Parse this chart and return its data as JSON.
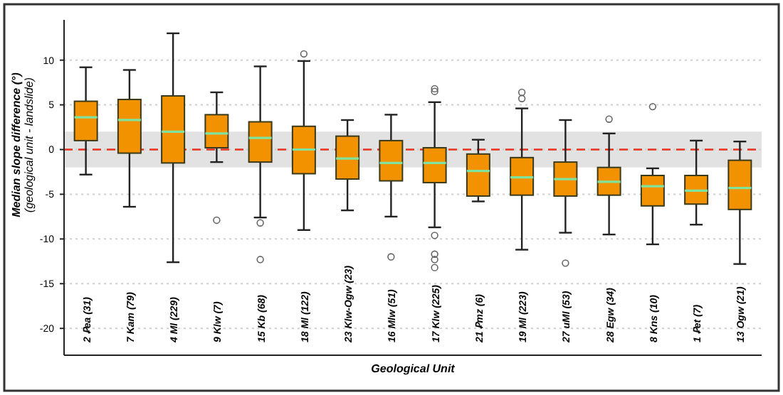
{
  "chart_data": {
    "type": "box",
    "xlabel": "Geological Unit",
    "ylabel": "Median slope difference (°)\n(geological unit - landslide)",
    "categories": [
      "2 Ꝑea (31)",
      "7 Kam (79)",
      "4 Ml (229)",
      "9 Klw (7)",
      "15 Kb (68)",
      "18 Ml (122)",
      "23 Klw-Ogw (23)",
      "16 Mlw (51)",
      "17 Klw (225)",
      "21 Ꝑmz (6)",
      "19 Ml (223)",
      "27 uMl (53)",
      "28 Egw (34)",
      "8 Kns (10)",
      "1 Ꝑet (7)",
      "13 Ogw (21)"
    ],
    "color": "#f39200",
    "boxes": [
      {
        "low": -2.8,
        "q1": 1.0,
        "median": 3.6,
        "q3": 5.4,
        "high": 9.2
      },
      {
        "low": -6.4,
        "q1": -0.4,
        "median": 3.3,
        "q3": 5.6,
        "high": 8.9
      },
      {
        "low": -12.6,
        "q1": -1.5,
        "median": 2.0,
        "q3": 6.0,
        "high": 13.0
      },
      {
        "low": -1.4,
        "q1": 0.2,
        "median": 1.8,
        "q3": 3.9,
        "high": 6.4,
        "outliers": [
          -7.9
        ]
      },
      {
        "low": -7.6,
        "q1": -1.4,
        "median": 1.3,
        "q3": 3.1,
        "high": 9.3,
        "outliers": [
          -8.2,
          -12.3
        ]
      },
      {
        "low": -9.0,
        "q1": -2.7,
        "median": 0.0,
        "q3": 2.6,
        "high": 9.9,
        "outliers": [
          10.7
        ]
      },
      {
        "low": -6.8,
        "q1": -3.3,
        "median": -1.0,
        "q3": 1.5,
        "high": 3.3
      },
      {
        "low": -7.5,
        "q1": -3.5,
        "median": -1.5,
        "q3": 1.0,
        "high": 3.9,
        "outliers": [
          -12.0
        ]
      },
      {
        "low": -8.7,
        "q1": -3.7,
        "median": -1.5,
        "q3": 0.2,
        "high": 5.3,
        "outliers": [
          6.5,
          6.8,
          -9.6,
          -11.7,
          -12.3,
          -13.2
        ]
      },
      {
        "low": -5.8,
        "q1": -5.2,
        "median": -2.4,
        "q3": -0.5,
        "high": 1.1
      },
      {
        "low": -11.2,
        "q1": -5.1,
        "median": -3.1,
        "q3": -0.9,
        "high": 4.6,
        "outliers": [
          5.7,
          6.4
        ]
      },
      {
        "low": -9.3,
        "q1": -5.2,
        "median": -3.3,
        "q3": -1.4,
        "high": 3.3,
        "outliers": [
          -12.7
        ]
      },
      {
        "low": -9.5,
        "q1": -5.1,
        "median": -3.6,
        "q3": -2.0,
        "high": 1.8,
        "outliers": [
          3.4
        ]
      },
      {
        "low": -10.6,
        "q1": -6.3,
        "median": -4.1,
        "q3": -2.9,
        "high": -2.1,
        "outliers": [
          4.8
        ]
      },
      {
        "low": -8.4,
        "q1": -6.1,
        "median": -4.6,
        "q3": -2.9,
        "high": 1.0
      },
      {
        "low": -12.8,
        "q1": -6.7,
        "median": -4.3,
        "q3": -1.2,
        "high": 0.9
      }
    ],
    "ylim": [
      -23,
      14.5
    ],
    "yticks": [
      -20,
      -15,
      -10,
      -5,
      0,
      5,
      10
    ],
    "grid": "y",
    "ref_lines": [
      {
        "axis": "y",
        "value": 0,
        "color": "#e8321e",
        "line_style": "dashed"
      }
    ],
    "bands": [
      {
        "axis": "y",
        "from": -2,
        "to": 2,
        "color": "#e2e2e2"
      }
    ]
  }
}
